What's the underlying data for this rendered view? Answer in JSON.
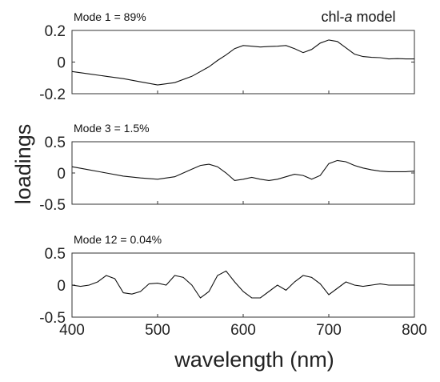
{
  "figure": {
    "ylabel": "loadings",
    "xlabel": "wavelength (nm)",
    "title_prefix": "chl-",
    "title_italic": "a",
    "title_suffix": " model"
  },
  "chart_data": [
    {
      "type": "line",
      "label": "Mode 1 = 89%",
      "xlim": [
        400,
        800
      ],
      "ylim": [
        -0.2,
        0.2
      ],
      "yticks": [
        "0.2",
        "0",
        "-0.2"
      ],
      "xticks": [],
      "x": [
        400,
        420,
        440,
        460,
        480,
        500,
        520,
        540,
        560,
        570,
        580,
        590,
        600,
        610,
        620,
        630,
        640,
        650,
        660,
        670,
        680,
        690,
        700,
        710,
        720,
        730,
        740,
        750,
        760,
        770,
        780,
        790,
        800
      ],
      "y": [
        -0.06,
        -0.075,
        -0.09,
        -0.105,
        -0.125,
        -0.145,
        -0.13,
        -0.09,
        -0.03,
        0.01,
        0.045,
        0.085,
        0.105,
        0.1,
        0.095,
        0.098,
        0.1,
        0.105,
        0.085,
        0.06,
        0.08,
        0.12,
        0.14,
        0.13,
        0.09,
        0.05,
        0.035,
        0.03,
        0.028,
        0.02,
        0.022,
        0.02,
        0.02
      ]
    },
    {
      "type": "line",
      "label": "Mode 3 = 1.5%",
      "xlim": [
        400,
        800
      ],
      "ylim": [
        -0.5,
        0.5
      ],
      "yticks": [
        "0.5",
        "0",
        "-0.5"
      ],
      "xticks": [],
      "x": [
        400,
        420,
        440,
        460,
        480,
        500,
        520,
        530,
        540,
        550,
        560,
        570,
        580,
        590,
        600,
        610,
        620,
        630,
        640,
        650,
        660,
        670,
        680,
        690,
        700,
        710,
        720,
        730,
        740,
        750,
        760,
        770,
        780,
        790,
        800
      ],
      "y": [
        0.1,
        0.05,
        0.0,
        -0.05,
        -0.08,
        -0.1,
        -0.06,
        0.0,
        0.06,
        0.12,
        0.14,
        0.1,
        0.0,
        -0.12,
        -0.1,
        -0.07,
        -0.1,
        -0.12,
        -0.1,
        -0.06,
        -0.02,
        -0.04,
        -0.1,
        -0.04,
        0.15,
        0.2,
        0.18,
        0.12,
        0.08,
        0.05,
        0.03,
        0.02,
        0.02,
        0.02,
        0.03
      ]
    },
    {
      "type": "line",
      "label": "Mode 12 = 0.04%",
      "xlim": [
        400,
        800
      ],
      "ylim": [
        -0.5,
        0.5
      ],
      "yticks": [
        "0.5",
        "0",
        "-0.5"
      ],
      "xticks": [
        "400",
        "500",
        "600",
        "700",
        "800"
      ],
      "x": [
        400,
        410,
        420,
        430,
        440,
        450,
        460,
        470,
        480,
        490,
        500,
        510,
        520,
        530,
        540,
        550,
        560,
        570,
        580,
        590,
        600,
        610,
        620,
        630,
        640,
        650,
        660,
        670,
        680,
        690,
        700,
        710,
        720,
        730,
        740,
        750,
        760,
        770,
        780,
        790,
        800
      ],
      "y": [
        0.0,
        -0.02,
        0.0,
        0.05,
        0.15,
        0.1,
        -0.12,
        -0.14,
        -0.1,
        0.02,
        0.03,
        0.0,
        0.15,
        0.12,
        0.0,
        -0.2,
        -0.1,
        0.15,
        0.22,
        0.05,
        -0.1,
        -0.2,
        -0.2,
        -0.1,
        0.0,
        -0.08,
        0.05,
        0.15,
        0.12,
        0.02,
        -0.15,
        -0.05,
        0.05,
        0.0,
        -0.02,
        0.0,
        0.02,
        0.0,
        0.0,
        0.0,
        0.0
      ]
    }
  ]
}
